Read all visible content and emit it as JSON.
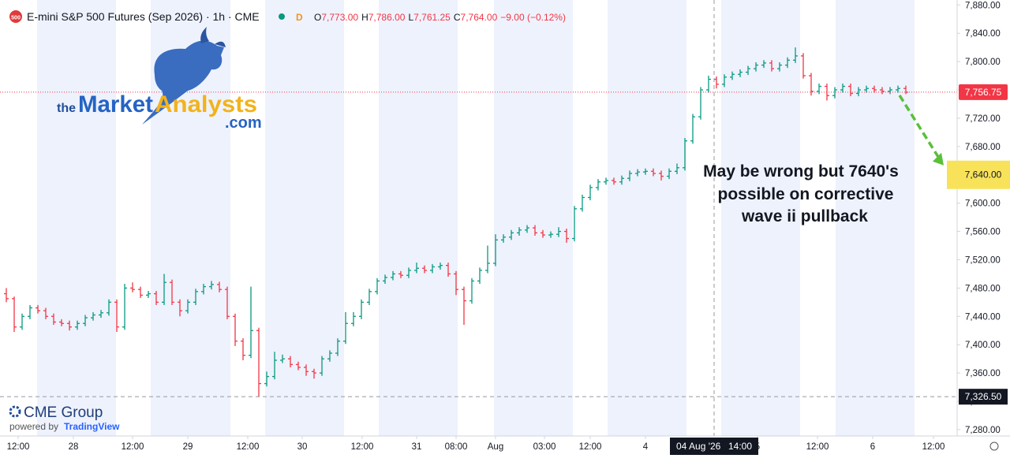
{
  "chart_data": {
    "type": "ohlc",
    "title": "E-mini S&P 500 Futures (Sep 2026) · 1h · CME",
    "symbol_icon": "500",
    "interval_badge": "D",
    "readout": [
      {
        "key": "O",
        "value": "7,773.00"
      },
      {
        "key": "H",
        "value": "7,786.00"
      },
      {
        "key": "L",
        "value": "7,761.25"
      },
      {
        "key": "C",
        "value": "7,764.00"
      }
    ],
    "readout_change": "−9.00 (−0.12%)",
    "up_color": "#089981",
    "down_color": "#f23645",
    "ylim": [
      7271,
      7887
    ],
    "yticks": [
      {
        "value": 7280,
        "label": "7,280.00"
      },
      {
        "value": 7320,
        "label": "7,320.00"
      },
      {
        "value": 7360,
        "label": "7,360.00"
      },
      {
        "value": 7400,
        "label": "7,400.00"
      },
      {
        "value": 7440,
        "label": "7,440.00"
      },
      {
        "value": 7480,
        "label": "7,480.00"
      },
      {
        "value": 7520,
        "label": "7,520.00"
      },
      {
        "value": 7560,
        "label": "7,560.00"
      },
      {
        "value": 7600,
        "label": "7,600.00"
      },
      {
        "value": 7640,
        "label": "7,640.00"
      },
      {
        "value": 7680,
        "label": "7,680.00"
      },
      {
        "value": 7720,
        "label": "7,720.00"
      },
      {
        "value": 7760,
        "label": "7,760.00"
      },
      {
        "value": 7800,
        "label": "7,800.00"
      },
      {
        "value": 7840,
        "label": "7,840.00"
      },
      {
        "value": 7880,
        "label": "7,880.00"
      }
    ],
    "xlim": [
      -0.8,
      120.5
    ],
    "xticks": [
      {
        "value": 1.5,
        "label": "12:00"
      },
      {
        "value": 8.5,
        "label": "28"
      },
      {
        "value": 16,
        "label": "12:00"
      },
      {
        "value": 23,
        "label": "29"
      },
      {
        "value": 30.6,
        "label": "12:00"
      },
      {
        "value": 37.5,
        "label": "30"
      },
      {
        "value": 45.1,
        "label": "12:00"
      },
      {
        "value": 52,
        "label": "31"
      },
      {
        "value": 57,
        "label": "08:00"
      },
      {
        "value": 62,
        "label": "Aug"
      },
      {
        "value": 68.2,
        "label": "03:00"
      },
      {
        "value": 74,
        "label": "12:00"
      },
      {
        "value": 81,
        "label": "4"
      },
      {
        "value": 95.2,
        "label": "5"
      },
      {
        "value": 102.8,
        "label": "12:00"
      },
      {
        "value": 109.8,
        "label": "6"
      },
      {
        "value": 117.5,
        "label": "12:00"
      }
    ],
    "ohlc": [
      [
        7472,
        7480,
        7460,
        7465
      ],
      [
        7465,
        7468,
        7418,
        7425
      ],
      [
        7425,
        7444,
        7421,
        7440
      ],
      [
        7440,
        7456,
        7436,
        7452
      ],
      [
        7452,
        7456,
        7444,
        7448
      ],
      [
        7448,
        7452,
        7436,
        7440
      ],
      [
        7440,
        7444,
        7428,
        7432
      ],
      [
        7432,
        7436,
        7426,
        7430
      ],
      [
        7430,
        7434,
        7420,
        7425
      ],
      [
        7425,
        7434,
        7421,
        7430
      ],
      [
        7430,
        7442,
        7426,
        7438
      ],
      [
        7438,
        7446,
        7434,
        7442
      ],
      [
        7442,
        7449,
        7438,
        7445
      ],
      [
        7445,
        7464,
        7441,
        7460
      ],
      [
        7460,
        7464,
        7418,
        7425
      ],
      [
        7425,
        7486,
        7421,
        7480
      ],
      [
        7480,
        7488,
        7474,
        7478
      ],
      [
        7478,
        7482,
        7466,
        7470
      ],
      [
        7470,
        7476,
        7466,
        7472
      ],
      [
        7472,
        7476,
        7456,
        7460
      ],
      [
        7460,
        7500,
        7456,
        7488
      ],
      [
        7488,
        7492,
        7456,
        7460
      ],
      [
        7460,
        7464,
        7440,
        7448
      ],
      [
        7448,
        7464,
        7444,
        7460
      ],
      [
        7460,
        7479,
        7456,
        7475
      ],
      [
        7475,
        7486,
        7471,
        7482
      ],
      [
        7482,
        7490,
        7478,
        7485
      ],
      [
        7485,
        7489,
        7474,
        7478
      ],
      [
        7478,
        7482,
        7436,
        7440
      ],
      [
        7440,
        7444,
        7398,
        7405
      ],
      [
        7405,
        7409,
        7378,
        7385
      ],
      [
        7385,
        7482,
        7381,
        7420
      ],
      [
        7420,
        7424,
        7326.5,
        7345
      ],
      [
        7345,
        7362,
        7341,
        7355
      ],
      [
        7355,
        7390,
        7351,
        7378
      ],
      [
        7378,
        7386,
        7374,
        7380
      ],
      [
        7380,
        7384,
        7368,
        7372
      ],
      [
        7372,
        7376,
        7364,
        7368
      ],
      [
        7368,
        7372,
        7356,
        7362
      ],
      [
        7362,
        7366,
        7352,
        7360
      ],
      [
        7360,
        7384,
        7356,
        7380
      ],
      [
        7380,
        7392,
        7376,
        7388
      ],
      [
        7388,
        7409,
        7384,
        7405
      ],
      [
        7405,
        7446,
        7401,
        7430
      ],
      [
        7430,
        7446,
        7426,
        7440
      ],
      [
        7440,
        7464,
        7436,
        7460
      ],
      [
        7460,
        7479,
        7456,
        7475
      ],
      [
        7475,
        7494,
        7471,
        7490
      ],
      [
        7490,
        7499,
        7486,
        7495
      ],
      [
        7495,
        7504,
        7491,
        7500
      ],
      [
        7500,
        7504,
        7494,
        7498
      ],
      [
        7498,
        7509,
        7494,
        7505
      ],
      [
        7505,
        7516,
        7501,
        7508
      ],
      [
        7508,
        7512,
        7501,
        7505
      ],
      [
        7505,
        7514,
        7501,
        7510
      ],
      [
        7510,
        7516,
        7506,
        7512
      ],
      [
        7512,
        7516,
        7496,
        7500
      ],
      [
        7500,
        7504,
        7470,
        7478
      ],
      [
        7478,
        7482,
        7428,
        7462
      ],
      [
        7462,
        7494,
        7458,
        7490
      ],
      [
        7490,
        7509,
        7486,
        7505
      ],
      [
        7505,
        7540,
        7501,
        7515
      ],
      [
        7515,
        7556,
        7511,
        7548
      ],
      [
        7548,
        7556,
        7544,
        7552
      ],
      [
        7552,
        7562,
        7548,
        7558
      ],
      [
        7558,
        7566,
        7554,
        7562
      ],
      [
        7562,
        7569,
        7558,
        7565
      ],
      [
        7565,
        7569,
        7554,
        7558
      ],
      [
        7558,
        7562,
        7551,
        7555
      ],
      [
        7555,
        7560,
        7551,
        7556
      ],
      [
        7556,
        7566,
        7552,
        7560
      ],
      [
        7560,
        7564,
        7544,
        7550
      ],
      [
        7550,
        7596,
        7546,
        7592
      ],
      [
        7592,
        7612,
        7588,
        7608
      ],
      [
        7608,
        7626,
        7604,
        7622
      ],
      [
        7622,
        7634,
        7618,
        7630
      ],
      [
        7630,
        7636,
        7626,
        7632
      ],
      [
        7632,
        7636,
        7626,
        7630
      ],
      [
        7630,
        7639,
        7626,
        7635
      ],
      [
        7635,
        7646,
        7631,
        7642
      ],
      [
        7642,
        7648,
        7638,
        7644
      ],
      [
        7644,
        7649,
        7640,
        7645
      ],
      [
        7645,
        7649,
        7638,
        7642
      ],
      [
        7642,
        7646,
        7632,
        7638
      ],
      [
        7638,
        7649,
        7634,
        7645
      ],
      [
        7645,
        7656,
        7641,
        7650
      ],
      [
        7650,
        7692,
        7646,
        7688
      ],
      [
        7688,
        7726,
        7684,
        7722
      ],
      [
        7722,
        7764,
        7718,
        7760
      ],
      [
        7760,
        7780,
        7756,
        7775
      ],
      [
        7775,
        7779,
        7762,
        7768
      ],
      [
        7768,
        7782,
        7764,
        7778
      ],
      [
        7778,
        7786,
        7774,
        7782
      ],
      [
        7782,
        7789,
        7778,
        7785
      ],
      [
        7785,
        7794,
        7781,
        7790
      ],
      [
        7790,
        7799,
        7786,
        7795
      ],
      [
        7795,
        7802,
        7791,
        7798
      ],
      [
        7798,
        7802,
        7786,
        7790
      ],
      [
        7790,
        7799,
        7786,
        7795
      ],
      [
        7795,
        7806,
        7791,
        7802
      ],
      [
        7802,
        7820,
        7798,
        7808
      ],
      [
        7808,
        7812,
        7776,
        7780
      ],
      [
        7780,
        7784,
        7752,
        7758
      ],
      [
        7758,
        7769,
        7754,
        7765
      ],
      [
        7765,
        7769,
        7745,
        7752
      ],
      [
        7752,
        7764,
        7748,
        7760
      ],
      [
        7760,
        7769,
        7756,
        7765
      ],
      [
        7765,
        7769,
        7751,
        7755
      ],
      [
        7755,
        7764,
        7751,
        7760
      ],
      [
        7760,
        7766,
        7756,
        7762
      ],
      [
        7762,
        7766,
        7756,
        7760
      ],
      [
        7760,
        7764,
        7754,
        7758
      ],
      [
        7758,
        7764,
        7754,
        7760
      ],
      [
        7760,
        7766,
        7756,
        7762
      ],
      [
        7762,
        7766,
        7754,
        7756.75
      ]
    ],
    "last_price": {
      "value": 7756.75,
      "label": "7,756.75"
    },
    "crosshair_price": {
      "value": 7326.5,
      "label": "7,326.50"
    },
    "crosshair_x": 89.7,
    "crosshair_date": "04 Aug '26",
    "crosshair_time": "14:00",
    "target": {
      "value": 7640,
      "label": "7,640.00"
    },
    "annotation": [
      "May be wrong but 7640's",
      "possible on corrective",
      "wave ii pullback"
    ],
    "logo": {
      "the": "the",
      "market": "Market",
      "analysts": "Analysts",
      "com": ".com"
    },
    "footer": {
      "brand": "CME Group",
      "powered": "powered by",
      "platform": "TradingView"
    }
  }
}
